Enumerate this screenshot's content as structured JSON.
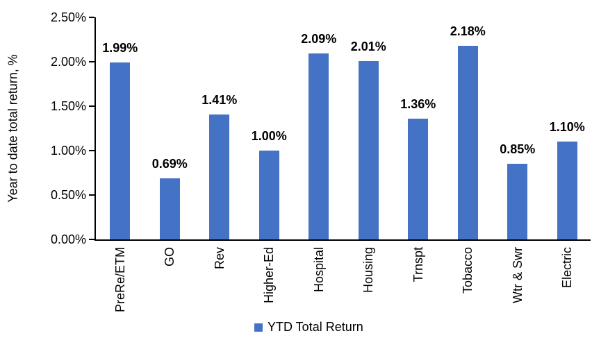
{
  "chart_data": {
    "type": "bar",
    "title": "",
    "xlabel": "",
    "ylabel": "Year to date total return, %",
    "categories": [
      "PreRe/ETM",
      "GO",
      "Rev",
      "Higher-Ed",
      "Hospital",
      "Housing",
      "Trnspt",
      "Tobacco",
      "Wtr & Swr",
      "Electric"
    ],
    "series": [
      {
        "name": "YTD Total Return",
        "values": [
          1.99,
          0.69,
          1.41,
          1.0,
          2.09,
          2.01,
          1.36,
          2.18,
          0.85,
          1.1
        ]
      }
    ],
    "value_labels": [
      "1.99%",
      "0.69%",
      "1.41%",
      "1.00%",
      "2.09%",
      "2.01%",
      "1.36%",
      "2.18%",
      "0.85%",
      "1.10%"
    ],
    "y_ticks": {
      "values": [
        0,
        0.5,
        1.0,
        1.5,
        2.0,
        2.5
      ],
      "labels": [
        "0.00%",
        "0.50%",
        "1.00%",
        "1.50%",
        "2.00%",
        "2.50%"
      ]
    },
    "ylim": [
      0,
      2.5
    ],
    "grid": false,
    "legend": {
      "position": "bottom",
      "entries": [
        {
          "label": "YTD Total Return",
          "color": "#4472C4"
        }
      ]
    },
    "bar_color": "#4472C4"
  },
  "colors": {
    "bar": "#4472C4",
    "axis": "#000000",
    "text": "#000000",
    "background": "#FFFFFF"
  }
}
